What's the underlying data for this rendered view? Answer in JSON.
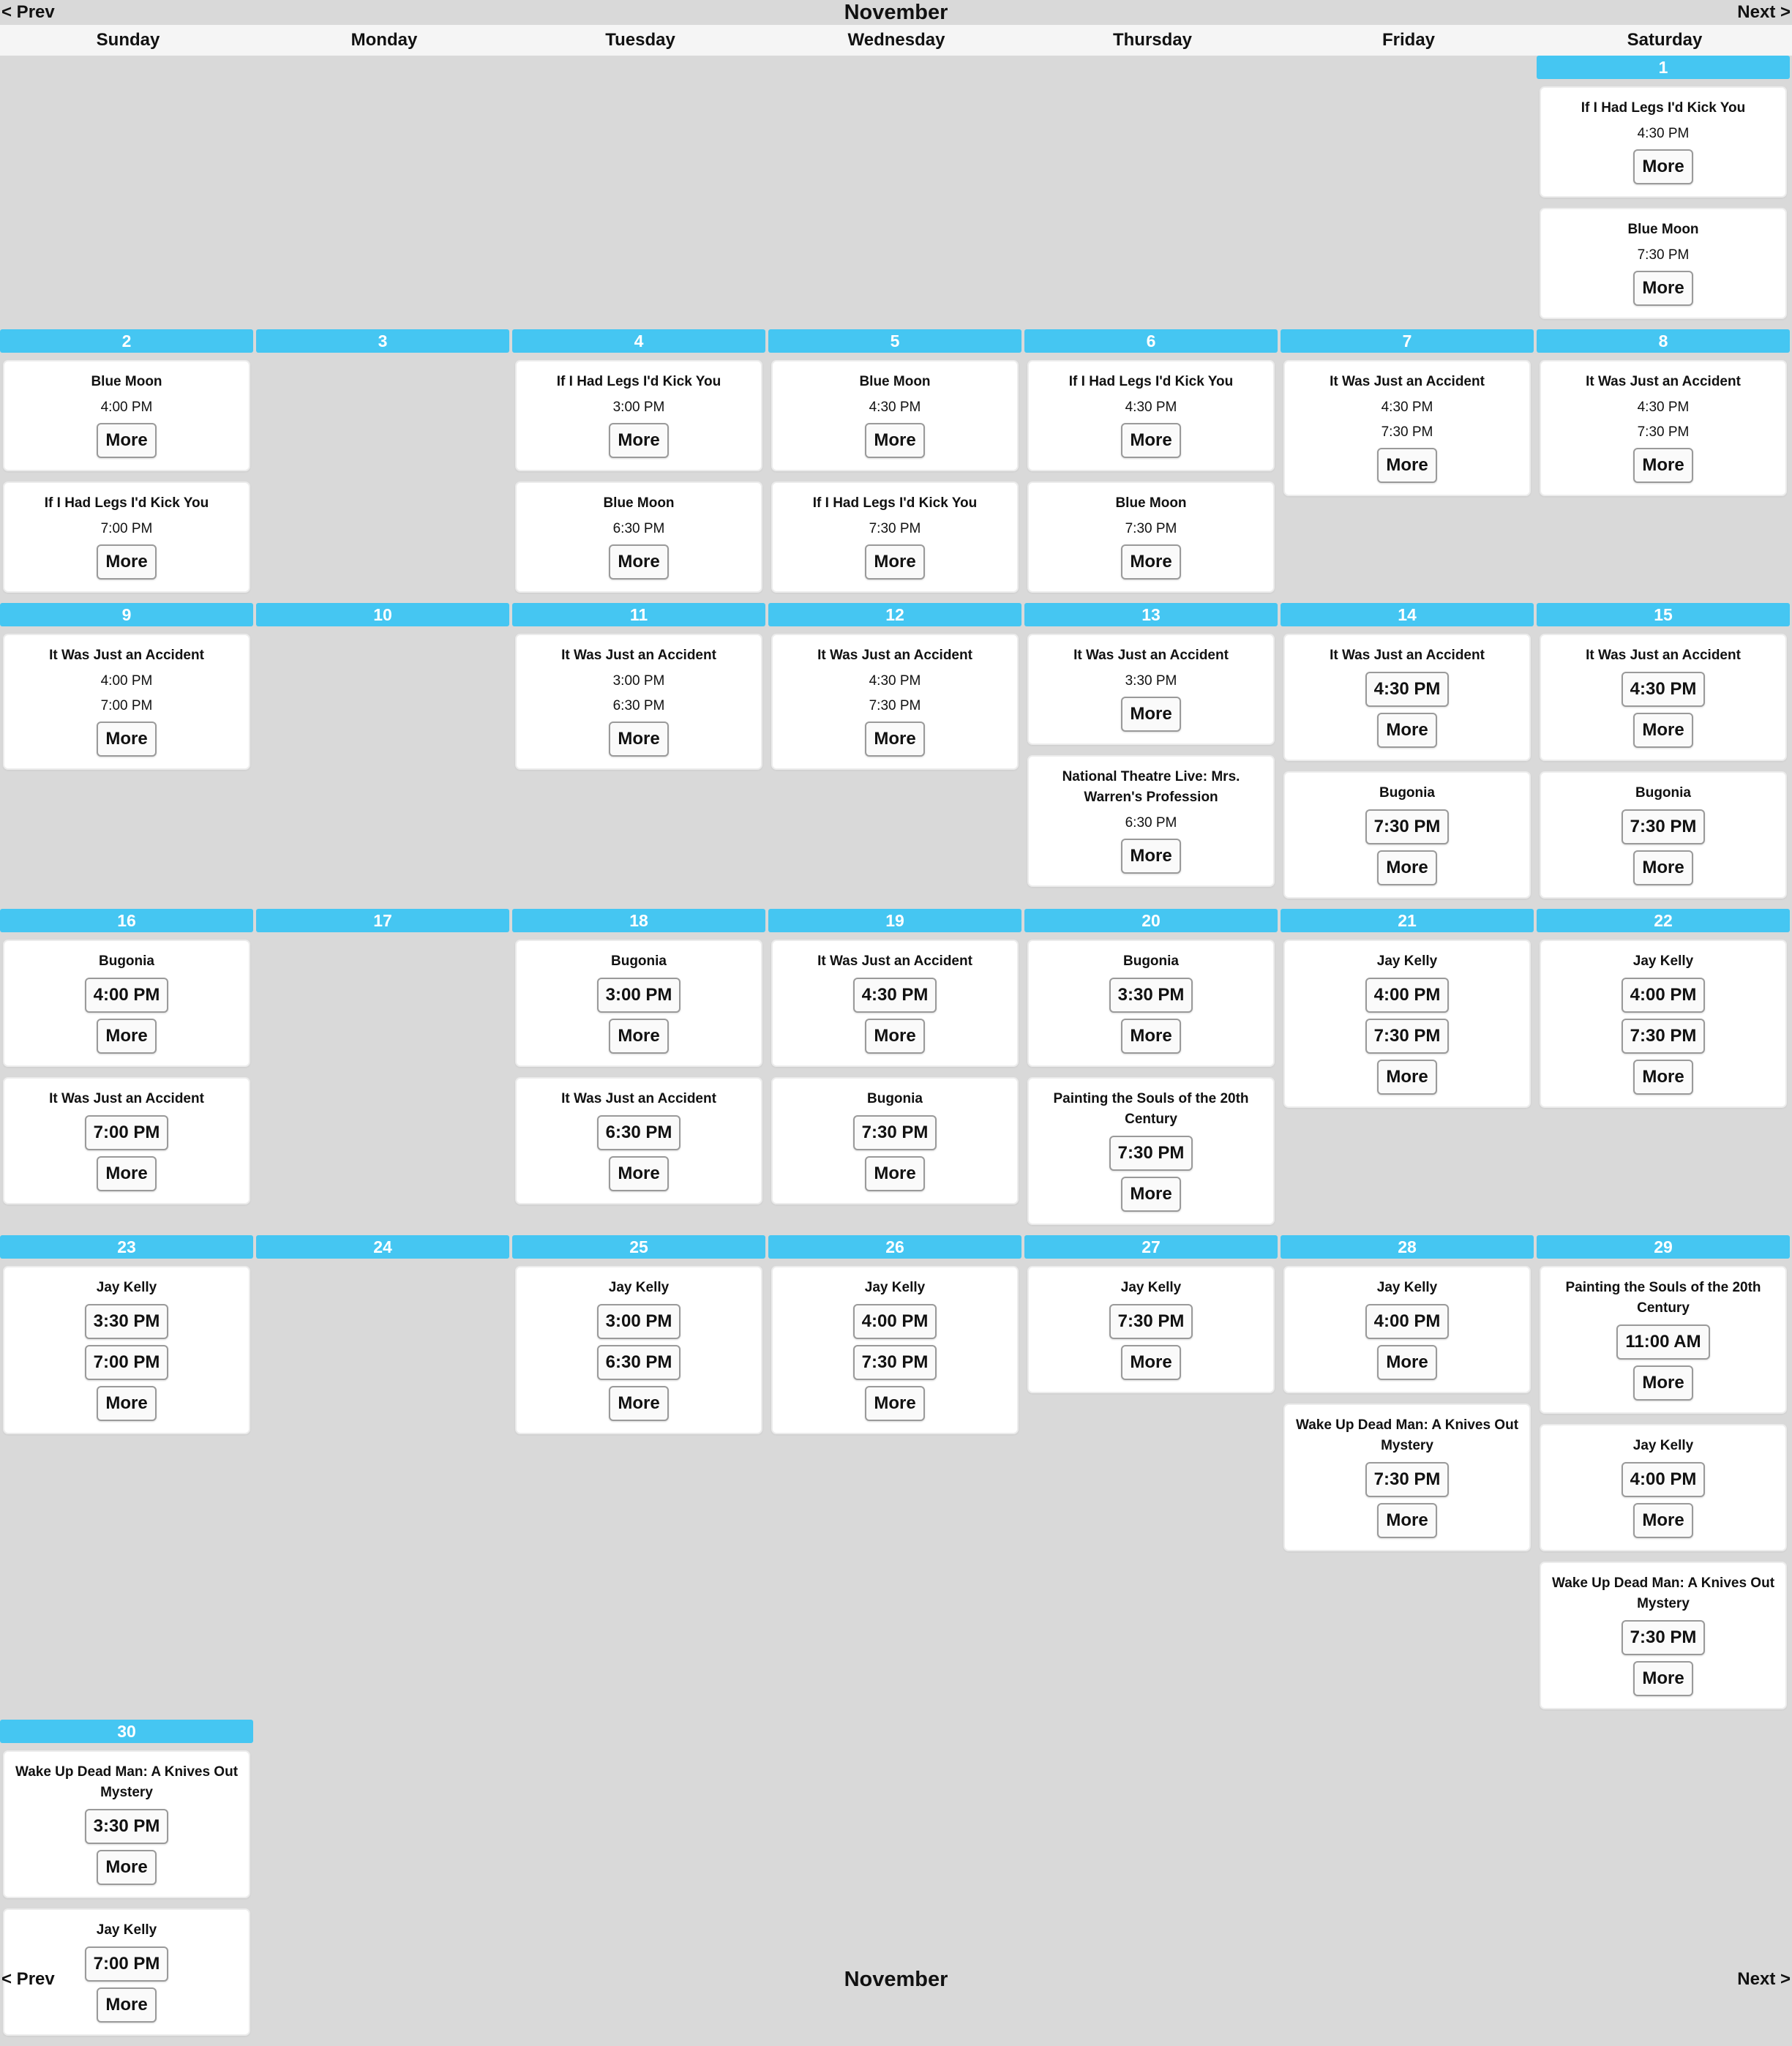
{
  "nav": {
    "prev": "< Prev",
    "next": "Next >",
    "month": "November"
  },
  "weekdays": [
    "Sunday",
    "Monday",
    "Tuesday",
    "Wednesday",
    "Thursday",
    "Friday",
    "Saturday"
  ],
  "more_label": "More",
  "weeks": [
    [
      null,
      null,
      null,
      null,
      null,
      null,
      {
        "day": "1",
        "events": [
          {
            "title": "If I Had Legs I'd Kick You",
            "times": [
              "4:30 PM"
            ],
            "time_buttons": false
          },
          {
            "title": "Blue Moon",
            "times": [
              "7:30 PM"
            ],
            "time_buttons": false
          }
        ]
      }
    ],
    [
      {
        "day": "2",
        "events": [
          {
            "title": "Blue Moon",
            "times": [
              "4:00 PM"
            ],
            "time_buttons": false
          },
          {
            "title": "If I Had Legs I'd Kick You",
            "times": [
              "7:00 PM"
            ],
            "time_buttons": false
          }
        ]
      },
      {
        "day": "3",
        "events": []
      },
      {
        "day": "4",
        "events": [
          {
            "title": "If I Had Legs I'd Kick You",
            "times": [
              "3:00 PM"
            ],
            "time_buttons": false
          },
          {
            "title": "Blue Moon",
            "times": [
              "6:30 PM"
            ],
            "time_buttons": false
          }
        ]
      },
      {
        "day": "5",
        "events": [
          {
            "title": "Blue Moon",
            "times": [
              "4:30 PM"
            ],
            "time_buttons": false
          },
          {
            "title": "If I Had Legs I'd Kick You",
            "times": [
              "7:30 PM"
            ],
            "time_buttons": false
          }
        ]
      },
      {
        "day": "6",
        "events": [
          {
            "title": "If I Had Legs I'd Kick You",
            "times": [
              "4:30 PM"
            ],
            "time_buttons": false
          },
          {
            "title": "Blue Moon",
            "times": [
              "7:30 PM"
            ],
            "time_buttons": false
          }
        ]
      },
      {
        "day": "7",
        "events": [
          {
            "title": "It Was Just an Accident",
            "times": [
              "4:30 PM",
              "7:30 PM"
            ],
            "time_buttons": false
          }
        ]
      },
      {
        "day": "8",
        "events": [
          {
            "title": "It Was Just an Accident",
            "times": [
              "4:30 PM",
              "7:30 PM"
            ],
            "time_buttons": false
          }
        ]
      }
    ],
    [
      {
        "day": "9",
        "events": [
          {
            "title": "It Was Just an Accident",
            "times": [
              "4:00 PM",
              "7:00 PM"
            ],
            "time_buttons": false
          }
        ]
      },
      {
        "day": "10",
        "events": []
      },
      {
        "day": "11",
        "events": [
          {
            "title": "It Was Just an Accident",
            "times": [
              "3:00 PM",
              "6:30 PM"
            ],
            "time_buttons": false
          }
        ]
      },
      {
        "day": "12",
        "events": [
          {
            "title": "It Was Just an Accident",
            "times": [
              "4:30 PM",
              "7:30 PM"
            ],
            "time_buttons": false
          }
        ]
      },
      {
        "day": "13",
        "events": [
          {
            "title": "It Was Just an Accident",
            "times": [
              "3:30 PM"
            ],
            "time_buttons": false
          },
          {
            "title": "National Theatre Live: Mrs. Warren's Profession",
            "times": [
              "6:30 PM"
            ],
            "time_buttons": false
          }
        ]
      },
      {
        "day": "14",
        "events": [
          {
            "title": "It Was Just an Accident",
            "times": [
              "4:30 PM"
            ],
            "time_buttons": true
          },
          {
            "title": "Bugonia",
            "times": [
              "7:30 PM"
            ],
            "time_buttons": true
          }
        ]
      },
      {
        "day": "15",
        "events": [
          {
            "title": "It Was Just an Accident",
            "times": [
              "4:30 PM"
            ],
            "time_buttons": true
          },
          {
            "title": "Bugonia",
            "times": [
              "7:30 PM"
            ],
            "time_buttons": true
          }
        ]
      }
    ],
    [
      {
        "day": "16",
        "events": [
          {
            "title": "Bugonia",
            "times": [
              "4:00 PM"
            ],
            "time_buttons": true
          },
          {
            "title": "It Was Just an Accident",
            "times": [
              "7:00 PM"
            ],
            "time_buttons": true
          }
        ]
      },
      {
        "day": "17",
        "events": []
      },
      {
        "day": "18",
        "events": [
          {
            "title": "Bugonia",
            "times": [
              "3:00 PM"
            ],
            "time_buttons": true
          },
          {
            "title": "It Was Just an Accident",
            "times": [
              "6:30 PM"
            ],
            "time_buttons": true
          }
        ]
      },
      {
        "day": "19",
        "events": [
          {
            "title": "It Was Just an Accident",
            "times": [
              "4:30 PM"
            ],
            "time_buttons": true
          },
          {
            "title": "Bugonia",
            "times": [
              "7:30 PM"
            ],
            "time_buttons": true
          }
        ]
      },
      {
        "day": "20",
        "events": [
          {
            "title": "Bugonia",
            "times": [
              "3:30 PM"
            ],
            "time_buttons": true
          },
          {
            "title": "Painting the Souls of the 20th Century",
            "times": [
              "7:30 PM"
            ],
            "time_buttons": true
          }
        ]
      },
      {
        "day": "21",
        "events": [
          {
            "title": "Jay Kelly",
            "times": [
              "4:00 PM",
              "7:30 PM"
            ],
            "time_buttons": true
          }
        ]
      },
      {
        "day": "22",
        "events": [
          {
            "title": "Jay Kelly",
            "times": [
              "4:00 PM",
              "7:30 PM"
            ],
            "time_buttons": true
          }
        ]
      }
    ],
    [
      {
        "day": "23",
        "events": [
          {
            "title": "Jay Kelly",
            "times": [
              "3:30 PM",
              "7:00 PM"
            ],
            "time_buttons": true
          }
        ]
      },
      {
        "day": "24",
        "events": []
      },
      {
        "day": "25",
        "events": [
          {
            "title": "Jay Kelly",
            "times": [
              "3:00 PM",
              "6:30 PM"
            ],
            "time_buttons": true
          }
        ]
      },
      {
        "day": "26",
        "events": [
          {
            "title": "Jay Kelly",
            "times": [
              "4:00 PM",
              "7:30 PM"
            ],
            "time_buttons": true
          }
        ]
      },
      {
        "day": "27",
        "events": [
          {
            "title": "Jay Kelly",
            "times": [
              "7:30 PM"
            ],
            "time_buttons": true
          }
        ]
      },
      {
        "day": "28",
        "events": [
          {
            "title": "Jay Kelly",
            "times": [
              "4:00 PM"
            ],
            "time_buttons": true
          },
          {
            "title": "Wake Up Dead Man: A Knives Out Mystery",
            "times": [
              "7:30 PM"
            ],
            "time_buttons": true
          }
        ]
      },
      {
        "day": "29",
        "events": [
          {
            "title": "Painting the Souls of the 20th Century",
            "times": [
              "11:00 AM"
            ],
            "time_buttons": true
          },
          {
            "title": "Jay Kelly",
            "times": [
              "4:00 PM"
            ],
            "time_buttons": true
          },
          {
            "title": "Wake Up Dead Man: A Knives Out Mystery",
            "times": [
              "7:30 PM"
            ],
            "time_buttons": true
          }
        ]
      }
    ],
    [
      {
        "day": "30",
        "events": [
          {
            "title": "Wake Up Dead Man: A Knives Out Mystery",
            "times": [
              "3:30 PM"
            ],
            "time_buttons": true
          },
          {
            "title": "Jay Kelly",
            "times": [
              "7:00 PM"
            ],
            "time_buttons": true
          }
        ]
      },
      null,
      null,
      null,
      null,
      null,
      null
    ]
  ]
}
